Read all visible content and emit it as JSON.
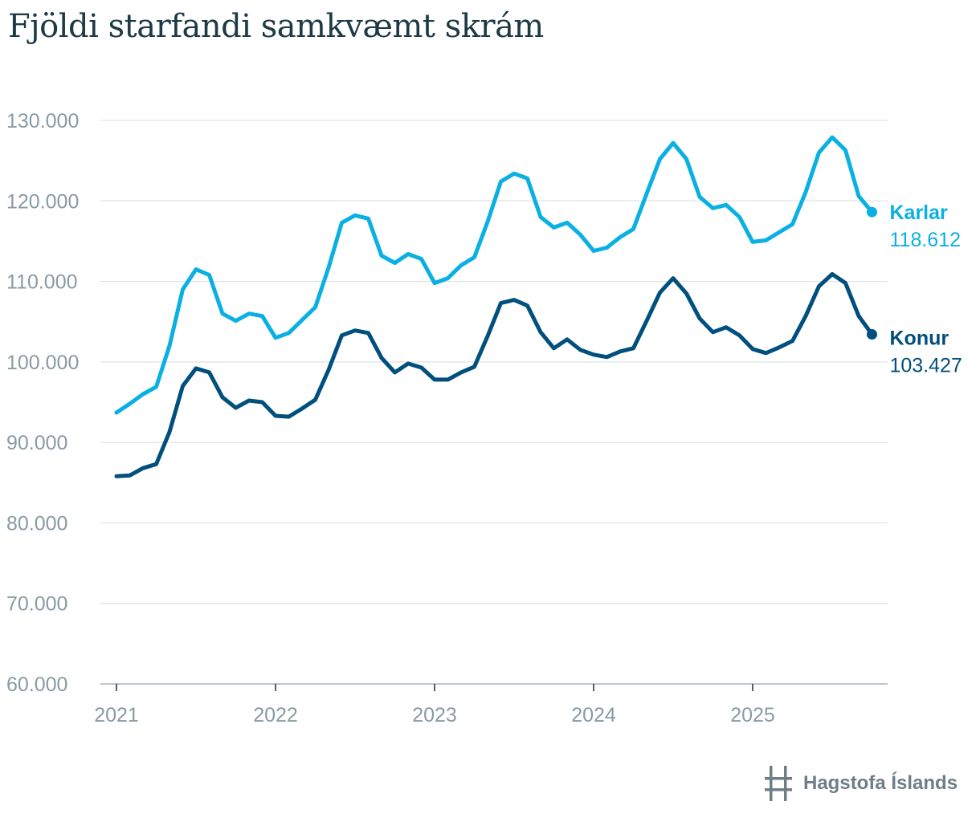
{
  "title": "Fjöldi starfandi samkvæmt skrám",
  "colors": {
    "karlar": "#0ab0e3",
    "konur": "#004f7d",
    "grid": "#dde3e7",
    "axis": "#8a9aa3",
    "logo": "#6e7e87"
  },
  "logo": {
    "text": "Hagstofa Íslands"
  },
  "chart_data": {
    "type": "line",
    "title": "Fjöldi starfandi samkvæmt skrám",
    "xlabel": "",
    "ylabel": "",
    "ylim": [
      60000,
      130000
    ],
    "yticks": [
      60000,
      70000,
      80000,
      90000,
      100000,
      110000,
      120000,
      130000
    ],
    "ytick_labels": [
      "60.000",
      "70.000",
      "80.000",
      "90.000",
      "100.000",
      "110.000",
      "120.000",
      "130.000"
    ],
    "xticks": [
      2021,
      2022,
      2023,
      2024,
      2025
    ],
    "xtick_labels": [
      "2021",
      "2022",
      "2023",
      "2024",
      "2025"
    ],
    "x_start": 2021,
    "x_step_months": 1,
    "series": [
      {
        "name": "Karlar",
        "color": "#0ab0e3",
        "end_label": "118.612",
        "values": [
          93700,
          94800,
          96000,
          96900,
          102000,
          109000,
          111500,
          110800,
          106000,
          105100,
          106000,
          105700,
          103000,
          103600,
          105200,
          106800,
          111700,
          117300,
          118200,
          117800,
          113200,
          112300,
          113400,
          112800,
          109800,
          110400,
          112000,
          113000,
          117400,
          122400,
          123400,
          122800,
          118000,
          116700,
          117300,
          115800,
          113800,
          114200,
          115500,
          116500,
          120900,
          125200,
          127200,
          125200,
          120500,
          119100,
          119500,
          118000,
          114900,
          115100,
          116100,
          117100,
          121100,
          126000,
          127900,
          126300,
          120600,
          118612
        ]
      },
      {
        "name": "Konur",
        "color": "#004f7d",
        "end_label": "103.427",
        "values": [
          85800,
          85900,
          86800,
          87300,
          91300,
          97000,
          99200,
          98700,
          95600,
          94300,
          95200,
          95000,
          93300,
          93200,
          94200,
          95300,
          99000,
          103300,
          103900,
          103600,
          100500,
          98700,
          99800,
          99300,
          97800,
          97800,
          98700,
          99400,
          103200,
          107300,
          107700,
          107000,
          103700,
          101700,
          102800,
          101500,
          100900,
          100600,
          101300,
          101700,
          105100,
          108600,
          110400,
          108500,
          105400,
          103700,
          104300,
          103300,
          101600,
          101100,
          101800,
          102600,
          105700,
          109400,
          110900,
          109800,
          105700,
          103427
        ]
      }
    ]
  }
}
